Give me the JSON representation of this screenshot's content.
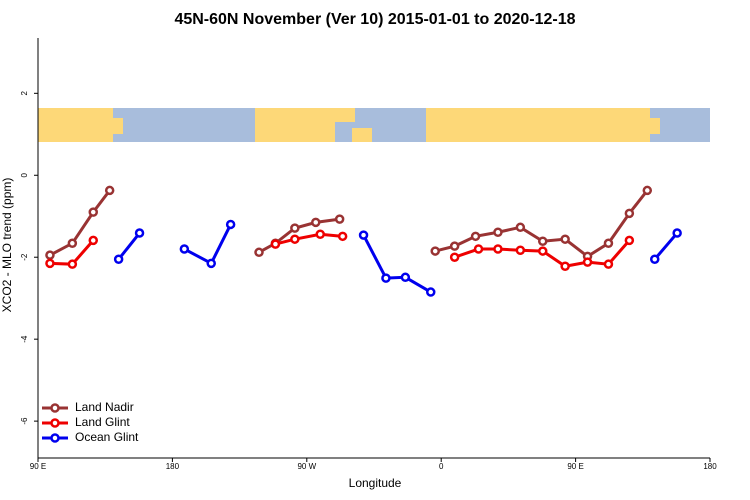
{
  "chart_data": {
    "type": "line",
    "title": "45N-60N November (Ver 10)   2015-01-01 to 2020-12-18",
    "x_label": "Longitude",
    "y_label": "XCO2 - MLO trend (ppm)",
    "xlim": [
      90,
      540
    ],
    "ylim": [
      -6.9,
      3.35
    ],
    "xticks": [
      {
        "value": 90,
        "label": "90 E"
      },
      180,
      {
        "value": 270,
        "label": "90 W"
      },
      {
        "value": 360,
        "label": "0"
      },
      {
        "value": 450,
        "label": "90 E"
      },
      {
        "value": 540,
        "label": "180"
      }
    ],
    "yticks": [
      -6,
      -4,
      -2,
      0,
      2
    ],
    "legend": "bottom-left",
    "series": [
      {
        "name": "Land Nadir",
        "color": "#993333",
        "x": [
          98,
          113,
          127,
          138,
          null,
          238,
          249,
          262,
          276,
          292,
          null,
          356,
          369,
          383,
          398,
          413,
          428,
          443,
          458,
          472,
          486,
          498
        ],
        "values": [
          -1.95,
          -1.66,
          -0.9,
          -0.37,
          null,
          -1.88,
          -1.66,
          -1.29,
          -1.15,
          -1.07,
          null,
          -1.85,
          -1.73,
          -1.49,
          -1.39,
          -1.27,
          -1.61,
          -1.56,
          -1.98,
          -1.66,
          -0.93,
          -0.37
        ]
      },
      {
        "name": "Land Glint",
        "color": "#ee0000",
        "x": [
          98,
          113,
          127,
          null,
          249,
          262,
          279,
          294,
          null,
          369,
          385,
          398,
          413,
          428,
          443,
          458,
          472,
          486
        ],
        "values": [
          -2.15,
          -2.17,
          -1.59,
          null,
          -1.68,
          -1.56,
          -1.44,
          -1.49,
          null,
          -2.0,
          -1.8,
          -1.8,
          -1.83,
          -1.85,
          -2.22,
          -2.12,
          -2.17,
          -1.59
        ]
      },
      {
        "name": "Ocean Glint",
        "color": "#0000ee",
        "x": [
          144,
          158,
          null,
          188,
          206,
          219,
          null,
          308,
          323,
          336,
          353,
          null,
          503,
          518
        ],
        "values": [
          -2.05,
          -1.41,
          null,
          -1.8,
          -2.15,
          -1.2,
          null,
          -1.46,
          -2.51,
          -2.49,
          -2.85,
          null,
          -2.05,
          -1.41
        ]
      }
    ]
  }
}
